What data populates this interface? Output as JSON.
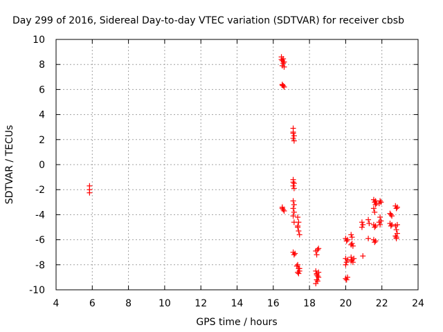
{
  "chart_data": {
    "type": "scatter",
    "title": "Day 299 of 2016, Sidereal Day-to-day VTEC variation (SDTVAR) for receiver cbsb",
    "xlabel": "GPS time / hours",
    "ylabel": "SDTVAR / TECUs",
    "xlim": [
      4,
      24
    ],
    "ylim": [
      -10,
      10
    ],
    "xticks": [
      "4",
      "6",
      "8",
      "10",
      "12",
      "14",
      "16",
      "18",
      "20",
      "22",
      "24"
    ],
    "yticks": [
      "-10",
      "-8",
      "-6",
      "-4",
      "-2",
      "0",
      "2",
      "4",
      "6",
      "8",
      "10"
    ],
    "grid": true,
    "marker": "plus",
    "color": "#ff0000",
    "series": [
      {
        "name": "SDTVAR",
        "points": [
          [
            5.85,
            -1.7
          ],
          [
            5.85,
            -2.0
          ],
          [
            5.85,
            -2.25
          ],
          [
            16.45,
            8.6
          ],
          [
            16.5,
            8.3
          ],
          [
            16.55,
            8.1
          ],
          [
            16.5,
            7.9
          ],
          [
            16.6,
            7.8
          ],
          [
            16.45,
            8.4
          ],
          [
            16.55,
            8.45
          ],
          [
            16.6,
            8.2
          ],
          [
            16.5,
            6.4
          ],
          [
            16.55,
            6.3
          ],
          [
            16.6,
            6.2
          ],
          [
            16.5,
            6.35
          ],
          [
            16.5,
            -3.5
          ],
          [
            16.55,
            -3.6
          ],
          [
            16.6,
            -3.7
          ],
          [
            16.5,
            -3.4
          ],
          [
            17.1,
            2.9
          ],
          [
            17.1,
            2.6
          ],
          [
            17.15,
            2.3
          ],
          [
            17.1,
            2.1
          ],
          [
            17.15,
            1.9
          ],
          [
            17.1,
            2.5
          ],
          [
            17.1,
            -1.2
          ],
          [
            17.15,
            -1.5
          ],
          [
            17.1,
            -1.7
          ],
          [
            17.15,
            -1.9
          ],
          [
            17.1,
            -1.4
          ],
          [
            17.1,
            -2.9
          ],
          [
            17.15,
            -3.2
          ],
          [
            17.1,
            -3.5
          ],
          [
            17.15,
            -3.8
          ],
          [
            17.1,
            -4.1
          ],
          [
            17.15,
            -4.6
          ],
          [
            17.1,
            -7.0
          ],
          [
            17.15,
            -7.2
          ],
          [
            17.2,
            -7.1
          ],
          [
            17.35,
            -4.2
          ],
          [
            17.4,
            -4.6
          ],
          [
            17.35,
            -5.0
          ],
          [
            17.4,
            -5.3
          ],
          [
            17.45,
            -5.6
          ],
          [
            17.35,
            -4.9
          ],
          [
            17.35,
            -8.0
          ],
          [
            17.4,
            -8.3
          ],
          [
            17.45,
            -8.5
          ],
          [
            17.35,
            -8.6
          ],
          [
            17.4,
            -8.7
          ],
          [
            17.45,
            -8.3
          ],
          [
            17.3,
            -8.1
          ],
          [
            18.35,
            -6.9
          ],
          [
            18.4,
            -7.2
          ],
          [
            18.45,
            -6.8
          ],
          [
            18.5,
            -6.7
          ],
          [
            18.35,
            -8.5
          ],
          [
            18.4,
            -8.7
          ],
          [
            18.45,
            -8.9
          ],
          [
            18.5,
            -9.0
          ],
          [
            18.4,
            -9.2
          ],
          [
            18.35,
            -9.5
          ],
          [
            18.45,
            -9.3
          ],
          [
            18.5,
            -8.6
          ],
          [
            18.4,
            -8.8
          ],
          [
            20.0,
            -5.9
          ],
          [
            20.05,
            -6.1
          ],
          [
            20.1,
            -6.0
          ],
          [
            20.0,
            -7.5
          ],
          [
            20.05,
            -7.8
          ],
          [
            20.0,
            -8.0
          ],
          [
            20.1,
            -7.6
          ],
          [
            20.0,
            -9.1
          ],
          [
            20.05,
            -9.2
          ],
          [
            20.1,
            -9.0
          ],
          [
            20.3,
            -5.6
          ],
          [
            20.35,
            -5.8
          ],
          [
            20.3,
            -6.4
          ],
          [
            20.4,
            -6.5
          ],
          [
            20.35,
            -6.3
          ],
          [
            20.3,
            -7.4
          ],
          [
            20.35,
            -7.6
          ],
          [
            20.4,
            -7.8
          ],
          [
            20.45,
            -7.5
          ],
          [
            20.3,
            -7.7
          ],
          [
            20.9,
            -4.6
          ],
          [
            20.95,
            -4.8
          ],
          [
            20.9,
            -5.0
          ],
          [
            20.95,
            -7.3
          ],
          [
            21.25,
            -4.4
          ],
          [
            21.3,
            -4.7
          ],
          [
            21.25,
            -5.9
          ],
          [
            21.55,
            -2.8
          ],
          [
            21.6,
            -3.0
          ],
          [
            21.65,
            -3.2
          ],
          [
            21.55,
            -3.5
          ],
          [
            21.6,
            -3.8
          ],
          [
            21.65,
            -2.9
          ],
          [
            21.7,
            -3.1
          ],
          [
            21.55,
            -4.8
          ],
          [
            21.6,
            -5.0
          ],
          [
            21.65,
            -4.9
          ],
          [
            21.55,
            -6.0
          ],
          [
            21.6,
            -6.2
          ],
          [
            21.65,
            -6.1
          ],
          [
            21.9,
            -2.9
          ],
          [
            21.95,
            -3.0
          ],
          [
            21.85,
            -3.1
          ],
          [
            21.9,
            -4.2
          ],
          [
            21.95,
            -4.5
          ],
          [
            21.9,
            -4.8
          ],
          [
            21.85,
            -4.6
          ],
          [
            22.45,
            -3.9
          ],
          [
            22.5,
            -4.0
          ],
          [
            22.55,
            -4.1
          ],
          [
            22.45,
            -4.7
          ],
          [
            22.5,
            -4.9
          ],
          [
            22.55,
            -4.8
          ],
          [
            22.75,
            -3.3
          ],
          [
            22.8,
            -3.5
          ],
          [
            22.85,
            -3.4
          ],
          [
            22.75,
            -4.9
          ],
          [
            22.8,
            -5.2
          ],
          [
            22.85,
            -5.5
          ],
          [
            22.75,
            -5.7
          ],
          [
            22.8,
            -5.9
          ],
          [
            22.85,
            -4.8
          ],
          [
            22.8,
            -5.8
          ]
        ]
      }
    ]
  }
}
